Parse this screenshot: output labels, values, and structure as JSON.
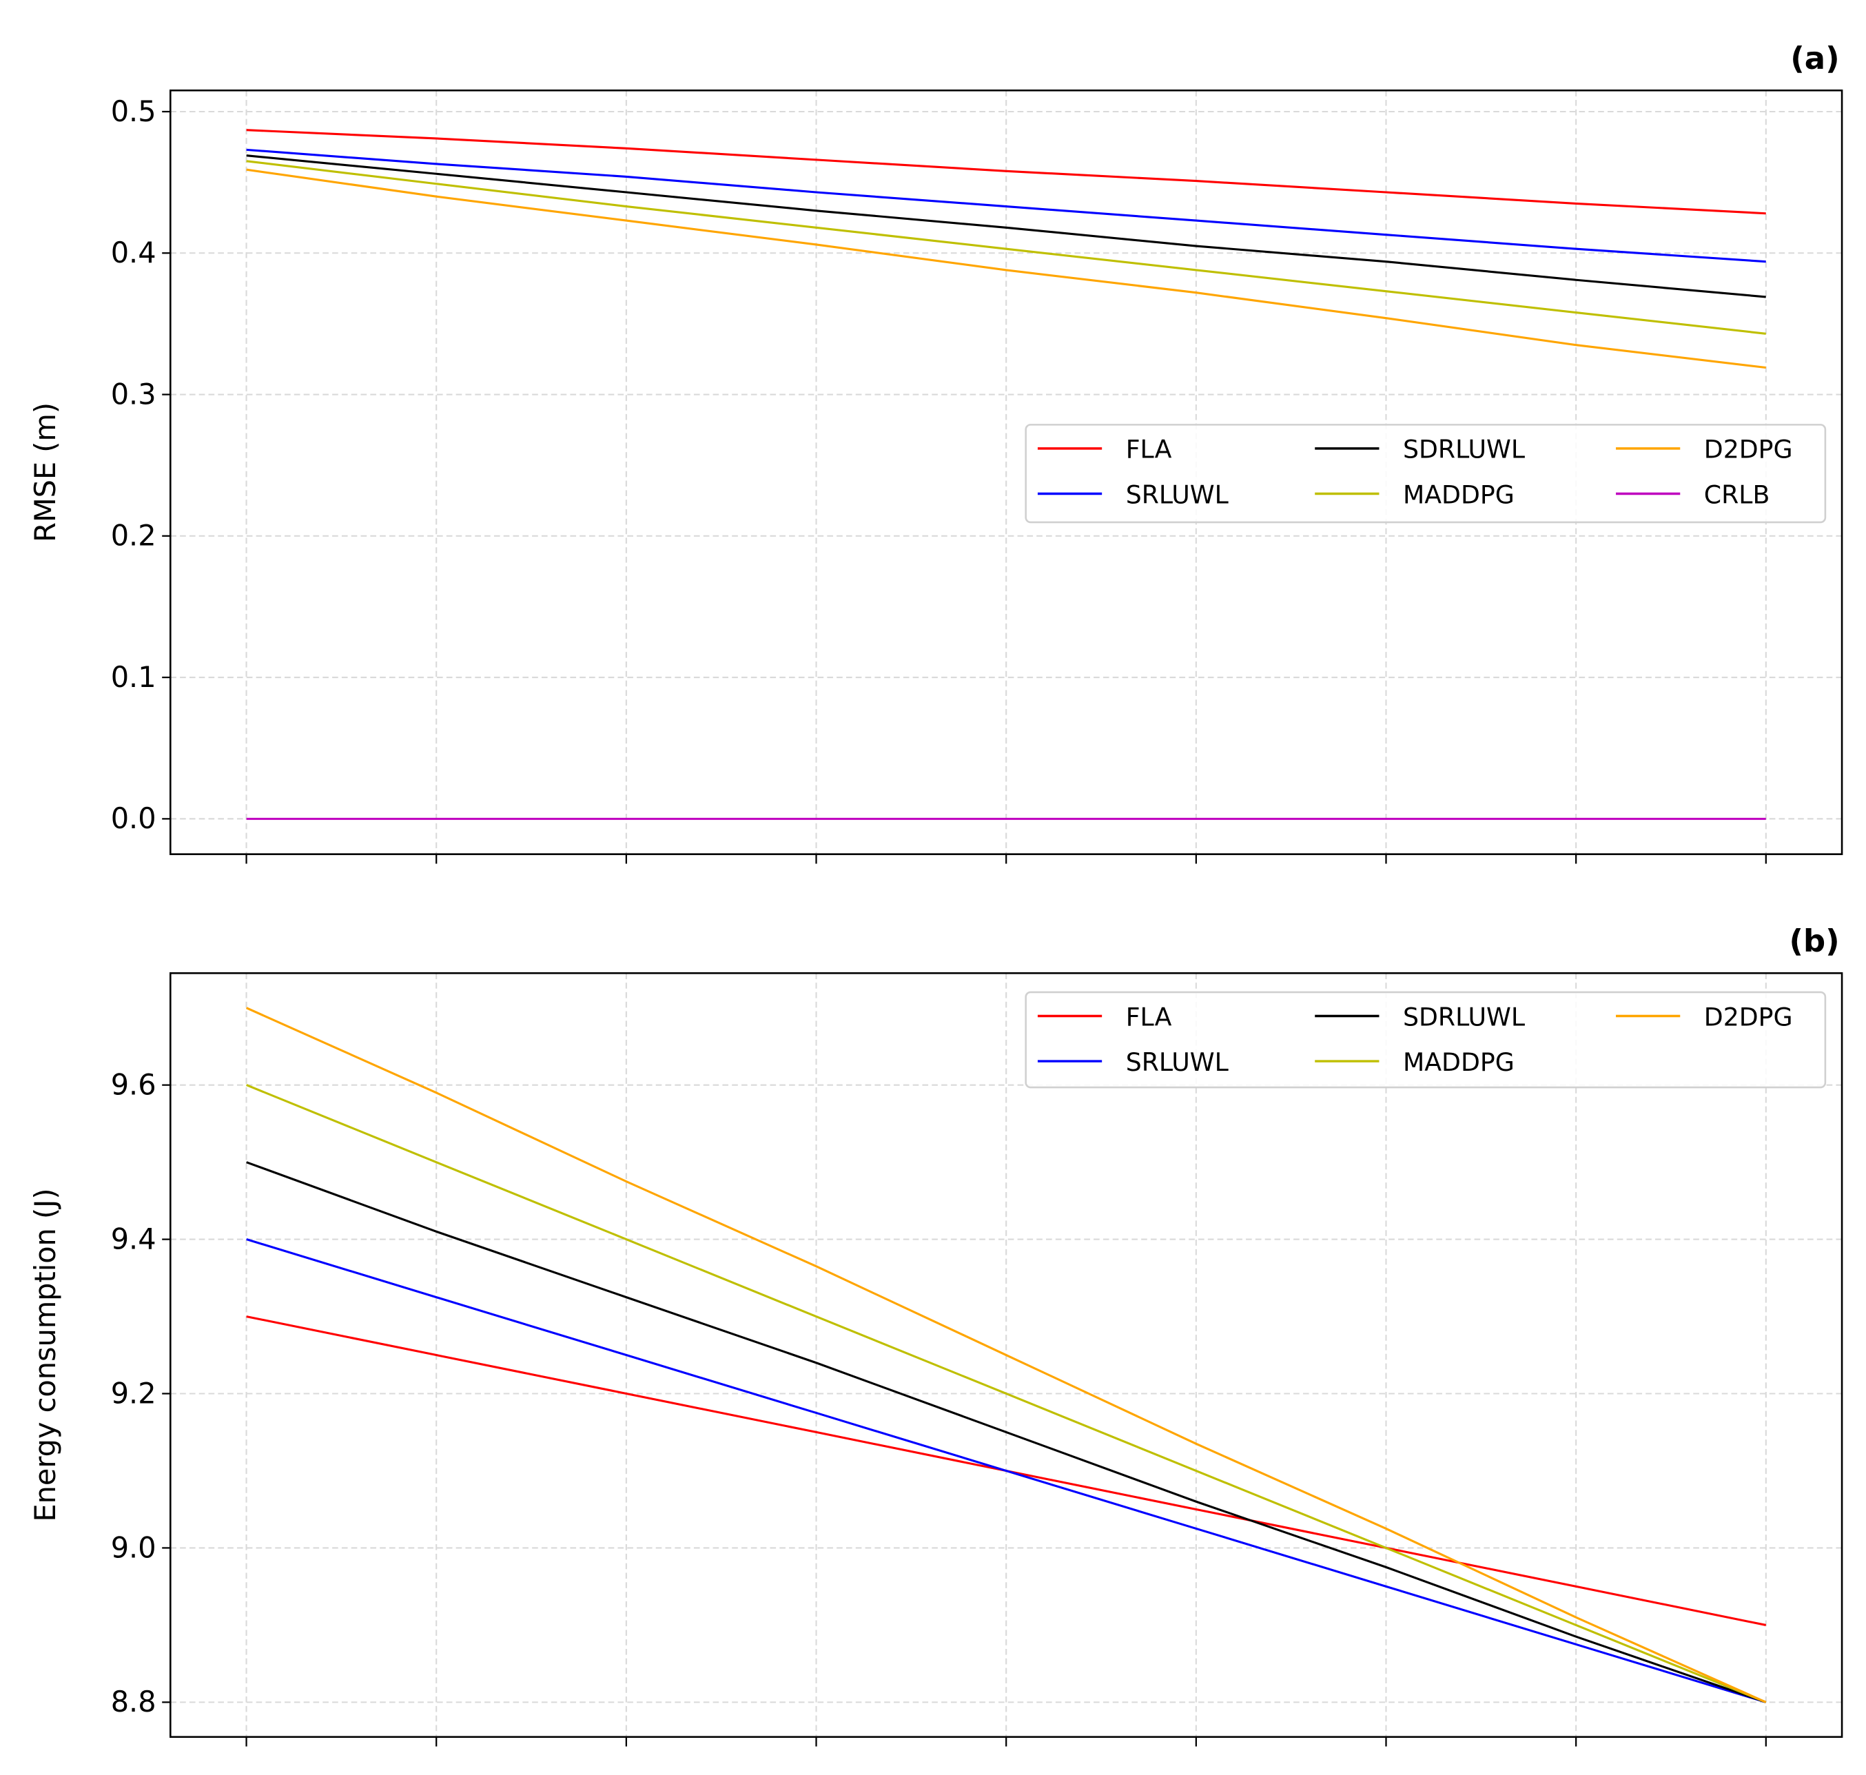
{
  "chart_data": [
    {
      "type": "line",
      "panel_label": "(a)",
      "title": "",
      "xlabel": "",
      "ylabel": "RMSE (m)",
      "x": [
        0,
        1,
        2,
        3,
        4,
        5,
        6,
        7,
        8
      ],
      "xlim": [
        -0.4,
        8.4
      ],
      "ylim": [
        -0.025,
        0.515
      ],
      "yticks": [
        0.0,
        0.1,
        0.2,
        0.3,
        0.4,
        0.5
      ],
      "ytick_labels": [
        "0.0",
        "0.1",
        "0.2",
        "0.3",
        "0.4",
        "0.5"
      ],
      "grid": true,
      "legend_placement": "center-right",
      "legend_columns": 3,
      "series": [
        {
          "name": "FLA",
          "color": "#ff0000",
          "values": [
            0.487,
            0.481,
            0.474,
            0.466,
            0.458,
            0.451,
            0.443,
            0.435,
            0.428
          ]
        },
        {
          "name": "SRLUWL",
          "color": "#0000ff",
          "values": [
            0.473,
            0.463,
            0.454,
            0.443,
            0.433,
            0.423,
            0.413,
            0.403,
            0.394
          ]
        },
        {
          "name": "SDRLUWL",
          "color": "#000000",
          "values": [
            0.469,
            0.456,
            0.443,
            0.43,
            0.418,
            0.405,
            0.394,
            0.381,
            0.369
          ]
        },
        {
          "name": "MADDPG",
          "color": "#bfbf00",
          "values": [
            0.465,
            0.449,
            0.433,
            0.418,
            0.403,
            0.388,
            0.373,
            0.358,
            0.343
          ]
        },
        {
          "name": "D2DPG",
          "color": "#ffa500",
          "values": [
            0.459,
            0.44,
            0.423,
            0.406,
            0.388,
            0.372,
            0.354,
            0.335,
            0.319
          ]
        },
        {
          "name": "CRLB",
          "color": "#bf00bf",
          "values": [
            0,
            0,
            0,
            0,
            0,
            0,
            0,
            0,
            0
          ]
        }
      ]
    },
    {
      "type": "line",
      "panel_label": "(b)",
      "title": "",
      "xlabel": "",
      "ylabel": "Energy consumption (J)",
      "x": [
        0,
        1,
        2,
        3,
        4,
        5,
        6,
        7,
        8
      ],
      "xlim": [
        -0.4,
        8.4
      ],
      "ylim": [
        8.755,
        9.745
      ],
      "yticks": [
        8.8,
        9.0,
        9.2,
        9.4,
        9.6
      ],
      "ytick_labels": [
        "8.8",
        "9.0",
        "9.2",
        "9.4",
        "9.6"
      ],
      "grid": true,
      "legend_placement": "top-right",
      "legend_columns": 3,
      "series": [
        {
          "name": "FLA",
          "color": "#ff0000",
          "values": [
            9.3,
            9.25,
            9.2,
            9.15,
            9.1,
            9.05,
            9.0,
            8.95,
            8.9
          ]
        },
        {
          "name": "SRLUWL",
          "color": "#0000ff",
          "values": [
            9.4,
            9.325,
            9.25,
            9.175,
            9.1,
            9.025,
            8.95,
            8.875,
            8.8
          ]
        },
        {
          "name": "SDRLUWL",
          "color": "#000000",
          "values": [
            9.5,
            9.41,
            9.325,
            9.24,
            9.15,
            9.06,
            8.975,
            8.885,
            8.8
          ]
        },
        {
          "name": "MADDPG",
          "color": "#bfbf00",
          "values": [
            9.6,
            9.5,
            9.4,
            9.3,
            9.2,
            9.1,
            9.0,
            8.9,
            8.8
          ]
        },
        {
          "name": "D2DPG",
          "color": "#ffa500",
          "values": [
            9.7,
            9.59,
            9.475,
            9.365,
            9.25,
            9.135,
            9.025,
            8.91,
            8.8
          ]
        }
      ]
    }
  ]
}
